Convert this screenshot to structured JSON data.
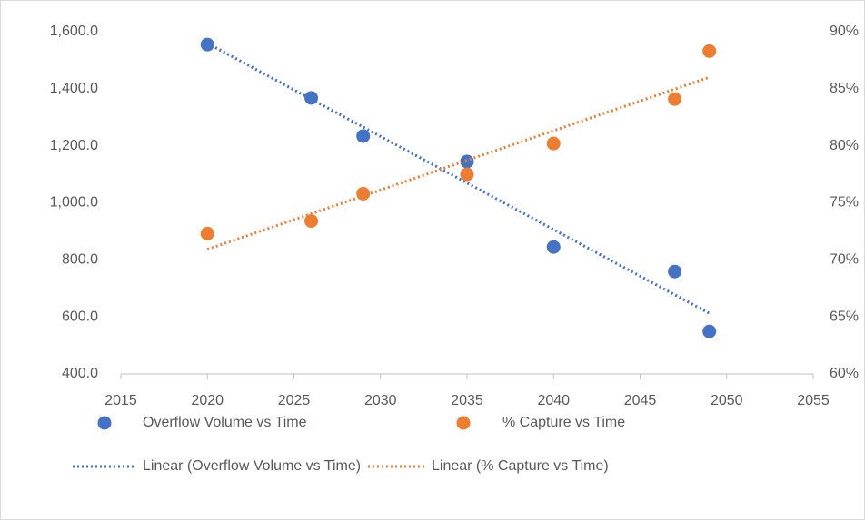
{
  "chart_data": {
    "type": "scatter",
    "x": [
      2020,
      2026,
      2029,
      2035,
      2040,
      2047,
      2049
    ],
    "series": [
      {
        "name": "Overflow Volume vs Time",
        "color": "#4472c4",
        "axis": "y",
        "values": [
          1555,
          1368,
          1234,
          1145,
          845,
          759,
          549
        ],
        "trendline": {
          "type": "linear",
          "name": "Linear (Overflow Volume vs Time)"
        }
      },
      {
        "name": "% Capture vs Time",
        "color": "#ed7d31",
        "axis": "y2",
        "values": [
          72.3,
          73.4,
          75.8,
          77.5,
          80.2,
          84.1,
          88.3
        ],
        "trendline": {
          "type": "linear",
          "name": "Linear (% Capture vs Time)"
        }
      }
    ],
    "xlim": [
      2015,
      2055
    ],
    "xticks": [
      2015,
      2020,
      2025,
      2030,
      2035,
      2040,
      2045,
      2050,
      2055
    ],
    "ylim": [
      400,
      1600
    ],
    "yticks": [
      {
        "value": 400,
        "label": "400.0"
      },
      {
        "value": 600,
        "label": "600.0"
      },
      {
        "value": 800,
        "label": "800.0"
      },
      {
        "value": 1000,
        "label": "1,000.0"
      },
      {
        "value": 1200,
        "label": "1,200.0"
      },
      {
        "value": 1400,
        "label": "1,400.0"
      },
      {
        "value": 1600,
        "label": "1,600.0"
      }
    ],
    "y2lim": [
      60,
      90
    ],
    "y2ticks": [
      {
        "value": 60,
        "label": "60%"
      },
      {
        "value": 65,
        "label": "65%"
      },
      {
        "value": 70,
        "label": "70%"
      },
      {
        "value": 75,
        "label": "75%"
      },
      {
        "value": 80,
        "label": "80%"
      },
      {
        "value": 85,
        "label": "85%"
      },
      {
        "value": 90,
        "label": "90%"
      }
    ],
    "grid": false,
    "legend": "bottom"
  }
}
